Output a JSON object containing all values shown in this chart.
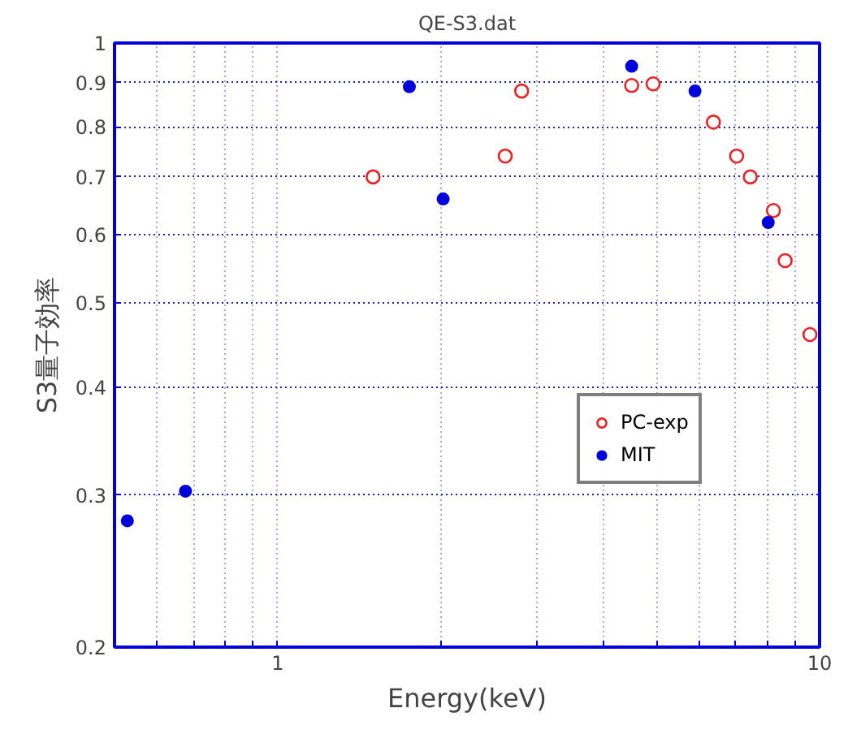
{
  "chart_data": {
    "type": "scatter",
    "title": "QE-S3.dat",
    "xlabel": "Energy(keV)",
    "ylabel": "S3量子効率",
    "log": "xy",
    "grid": true,
    "legend": "right",
    "xlim": [
      0.5,
      10
    ],
    "ylim": [
      0.2,
      1
    ],
    "xticks": [
      {
        "value": 0.6,
        "label": null
      },
      {
        "value": 0.7,
        "label": null
      },
      {
        "value": 0.8,
        "label": null
      },
      {
        "value": 0.9,
        "label": null
      },
      1,
      {
        "value": 2,
        "label": null
      },
      {
        "value": 3,
        "label": null
      },
      {
        "value": 4,
        "label": null
      },
      {
        "value": 5,
        "label": null
      },
      {
        "value": 6,
        "label": null
      },
      {
        "value": 7,
        "label": null
      },
      {
        "value": 8,
        "label": null
      },
      {
        "value": 9,
        "label": null
      },
      10
    ],
    "yticks": [
      0.2,
      0.3,
      0.4,
      0.5,
      0.6,
      0.7,
      0.8,
      0.9,
      1
    ],
    "series": [
      {
        "name": "PC-exp",
        "color": "#ee2222",
        "marker": "circle_open",
        "x": [
          1.5,
          2.63,
          2.82,
          4.5,
          4.93,
          6.37,
          7.03,
          7.45,
          8.22,
          8.64,
          9.6
        ],
        "values": [
          0.7,
          0.74,
          0.88,
          0.893,
          0.897,
          0.81,
          0.74,
          0.7,
          0.64,
          0.56,
          0.46
        ]
      },
      {
        "name": "MIT",
        "color": "#0000dd",
        "marker": "circle",
        "x": [
          0.528,
          0.676,
          1.75,
          2.02,
          4.5,
          5.89,
          8.04
        ],
        "values": [
          0.28,
          0.303,
          0.89,
          0.66,
          0.94,
          0.88,
          0.62
        ]
      }
    ]
  }
}
